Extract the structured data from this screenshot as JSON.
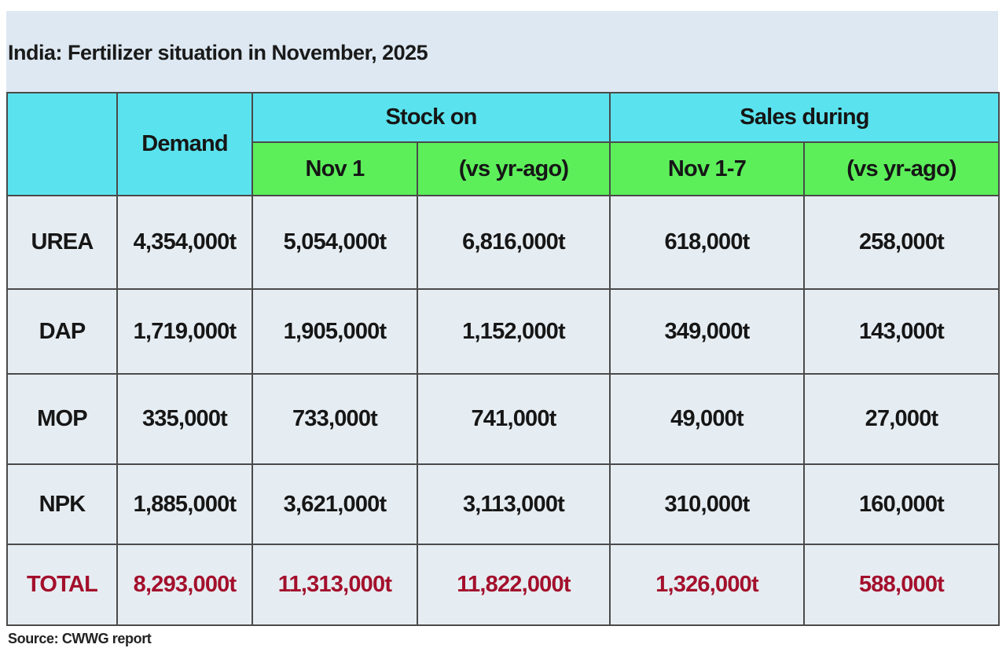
{
  "title": "India: Fertilizer situation in November, 2025",
  "table": {
    "header": {
      "demand": "Demand",
      "stock_on": "Stock on",
      "sales_during": "Sales during",
      "subheaders": [
        "Nov 1",
        "(vs yr-ago)",
        "Nov 1-7",
        "(vs yr-ago)"
      ]
    },
    "rows": [
      [
        "UREA",
        "4,354,000t",
        "5,054,000t",
        "6,816,000t",
        "618,000t",
        "258,000t"
      ],
      [
        "DAP",
        "1,719,000t",
        "1,905,000t",
        "1,152,000t",
        "349,000t",
        "143,000t"
      ],
      [
        "MOP",
        "335,000t",
        "733,000t",
        "741,000t",
        "49,000t",
        "27,000t"
      ],
      [
        "NPK",
        "1,885,000t",
        "3,621,000t",
        "3,113,000t",
        "310,000t",
        "160,000t"
      ],
      [
        "TOTAL",
        "8,293,000t",
        "11,313,000t",
        "11,822,000t",
        "1,326,000t",
        "588,000t"
      ]
    ]
  },
  "source": "Source: CWWG report"
}
